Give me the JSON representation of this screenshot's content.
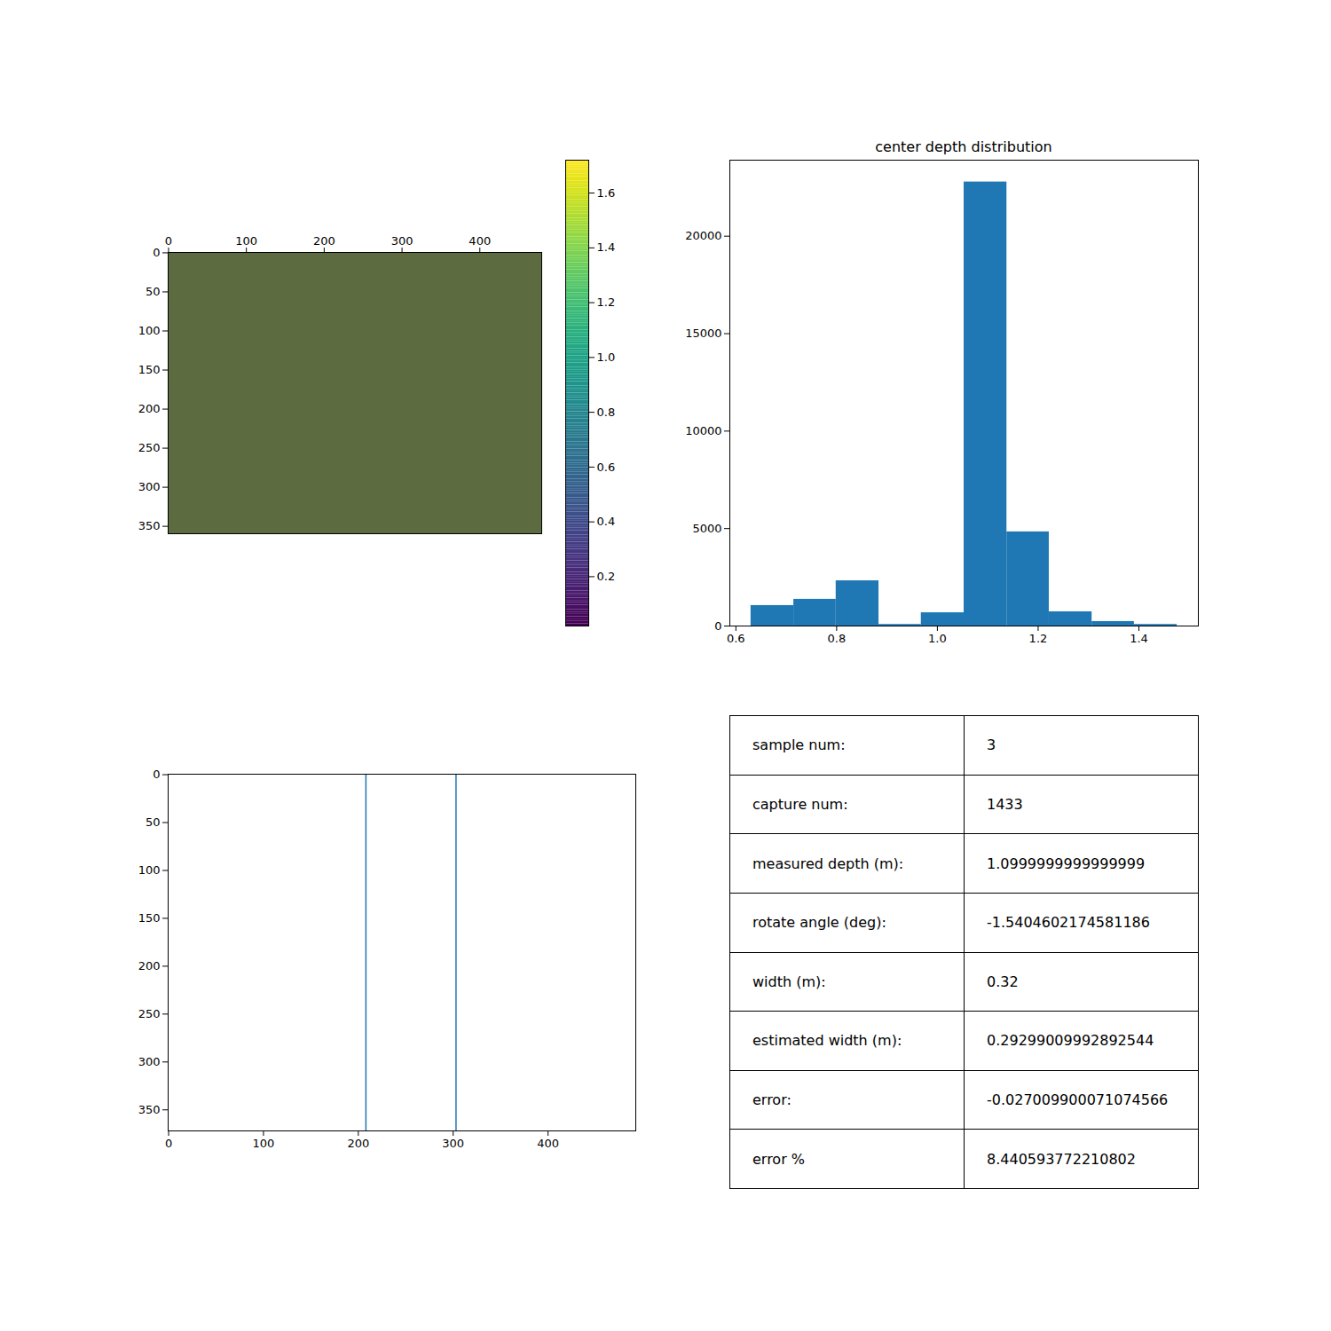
{
  "chart_data": [
    {
      "type": "image",
      "xlim": [
        -0.5,
        479.5
      ],
      "ylim": [
        359.5,
        -0.5
      ],
      "xticks": [
        0,
        100,
        200,
        300,
        400
      ],
      "yticks": [
        0,
        50,
        100,
        150,
        200,
        250,
        300,
        350
      ],
      "colorbar_range": [
        0.02,
        1.72
      ],
      "colorbar_ticks": [
        0.2,
        0.4,
        0.6,
        0.8,
        {
          "value": 1,
          "label": "1.0"
        },
        1.2,
        1.4,
        1.6
      ]
    },
    {
      "type": "histogram",
      "title": "center depth distribution",
      "bins": [
        0.63,
        0.715,
        0.799,
        0.884,
        0.968,
        1.053,
        1.138,
        1.222,
        1.307,
        1.391,
        1.476
      ],
      "values": [
        1050,
        1370,
        2320,
        80,
        680,
        22780,
        4830,
        730,
        230,
        80
      ],
      "color": "#1f77b4",
      "xlim": [
        0.588,
        1.518
      ],
      "ylim": [
        0,
        23900
      ],
      "xticks": [
        0.6,
        0.8,
        {
          "value": 1,
          "label": "1.0"
        },
        1.2,
        1.4
      ],
      "yticks": [
        0,
        5000,
        10000,
        15000,
        20000
      ]
    },
    {
      "type": "image",
      "xlim": [
        -0.5,
        492.5
      ],
      "ylim": [
        372,
        -0.5
      ],
      "xticks": [
        0,
        100,
        200,
        300,
        400
      ],
      "yticks": [
        0,
        50,
        100,
        150,
        200,
        250,
        300,
        350
      ],
      "vlines": [
        208,
        303
      ],
      "color": "#1f77b4"
    }
  ],
  "table": {
    "rows": [
      [
        "sample num:",
        "3"
      ],
      [
        "capture num:",
        "1433"
      ],
      [
        "measured depth (m):",
        "1.0999999999999999"
      ],
      [
        "rotate angle (deg):",
        "-1.5404602174581186"
      ],
      [
        "width (m):",
        "0.32"
      ],
      [
        "estimated width (m):",
        "0.29299009992892544"
      ],
      [
        "error:",
        "-0.027009900071074566"
      ],
      [
        "error %",
        "8.440593772210802"
      ]
    ]
  }
}
